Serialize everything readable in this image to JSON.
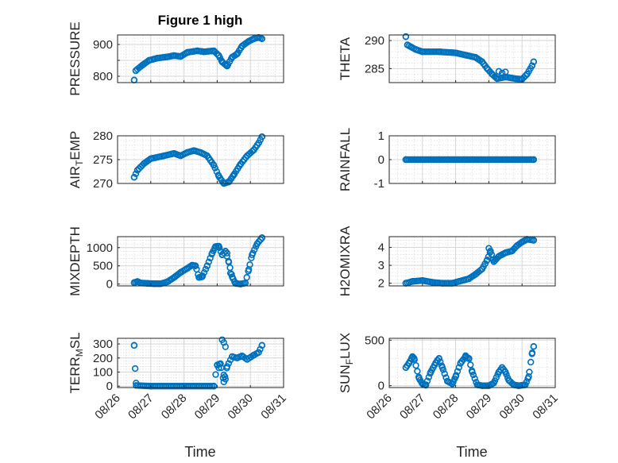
{
  "figure": {
    "title": "Figure 1 high",
    "marker_color": "#0072bd",
    "x_tick_labels": [
      "08/26",
      "08/27",
      "08/28",
      "08/29",
      "08/30",
      "08/31"
    ],
    "x_label": "Time"
  },
  "chart_data": [
    {
      "type": "scatter",
      "ylabel": "PRESSURE",
      "ylim": [
        780,
        930
      ],
      "yticks": [
        800,
        850,
        900
      ],
      "ytick_labels": [
        "800",
        "",
        "900"
      ],
      "x_day_range": [
        26,
        31
      ],
      "anchors": [
        [
          26.5,
          788
        ],
        [
          26.55,
          818
        ],
        [
          26.75,
          835
        ],
        [
          26.95,
          850
        ],
        [
          27.2,
          857
        ],
        [
          27.5,
          861
        ],
        [
          27.7,
          865
        ],
        [
          27.9,
          862
        ],
        [
          28.1,
          875
        ],
        [
          28.4,
          880
        ],
        [
          28.6,
          877
        ],
        [
          28.9,
          880
        ],
        [
          29.05,
          865
        ],
        [
          29.15,
          845
        ],
        [
          29.3,
          832
        ],
        [
          29.45,
          860
        ],
        [
          29.6,
          870
        ],
        [
          29.75,
          895
        ],
        [
          29.95,
          910
        ],
        [
          30.1,
          918
        ],
        [
          30.25,
          922
        ],
        [
          30.35,
          918
        ]
      ],
      "points": 80,
      "extras": [
        [
          29.25,
          838
        ],
        [
          29.3,
          833
        ]
      ]
    },
    {
      "type": "scatter",
      "ylabel": "THETA",
      "ylim": [
        282.5,
        291
      ],
      "yticks": [
        285,
        290
      ],
      "ytick_labels": [
        "285",
        "290"
      ],
      "x_day_range": [
        26,
        31
      ],
      "anchors": [
        [
          26.5,
          290.7
        ],
        [
          26.55,
          289.2
        ],
        [
          26.8,
          288.4
        ],
        [
          27.0,
          288.0
        ],
        [
          27.5,
          288.0
        ],
        [
          28.0,
          287.8
        ],
        [
          28.3,
          287.4
        ],
        [
          28.6,
          287.0
        ],
        [
          28.8,
          286.2
        ],
        [
          28.95,
          285.0
        ],
        [
          29.1,
          284.0
        ],
        [
          29.25,
          283.2
        ],
        [
          29.5,
          283.5
        ],
        [
          29.8,
          283.2
        ],
        [
          30.0,
          283.1
        ],
        [
          30.15,
          284.0
        ],
        [
          30.3,
          285.5
        ],
        [
          30.35,
          286.2
        ]
      ],
      "points": 80,
      "extras": [
        [
          29.3,
          284.5
        ],
        [
          29.4,
          284.2
        ],
        [
          29.5,
          284.4
        ]
      ]
    },
    {
      "type": "scatter",
      "ylabel": "AIR_TEMP",
      "ylim": [
        270,
        280
      ],
      "yticks": [
        270,
        275,
        280
      ],
      "ytick_labels": [
        "270",
        "275",
        "280"
      ],
      "x_day_range": [
        26,
        31
      ],
      "anchors": [
        [
          26.5,
          271.3
        ],
        [
          26.6,
          272.8
        ],
        [
          26.8,
          274.2
        ],
        [
          27.0,
          275.2
        ],
        [
          27.4,
          275.8
        ],
        [
          27.7,
          276.3
        ],
        [
          27.9,
          275.8
        ],
        [
          28.1,
          276.5
        ],
        [
          28.3,
          276.9
        ],
        [
          28.5,
          276.5
        ],
        [
          28.7,
          275.8
        ],
        [
          28.9,
          273.8
        ],
        [
          29.05,
          271.5
        ],
        [
          29.2,
          270.0
        ],
        [
          29.35,
          270.3
        ],
        [
          29.5,
          271.8
        ],
        [
          29.7,
          274.0
        ],
        [
          29.9,
          275.8
        ],
        [
          30.1,
          277.0
        ],
        [
          30.25,
          278.5
        ],
        [
          30.35,
          279.8
        ]
      ],
      "points": 80,
      "extras": []
    },
    {
      "type": "scatter",
      "ylabel": "RAINFALL",
      "ylim": [
        -1,
        1
      ],
      "yticks": [
        -1,
        0,
        1
      ],
      "ytick_labels": [
        "-1",
        "0",
        "1"
      ],
      "x_day_range": [
        26,
        31
      ],
      "anchors": [
        [
          26.5,
          0
        ],
        [
          30.35,
          0
        ]
      ],
      "points": 90,
      "extras": []
    },
    {
      "type": "scatter",
      "ylabel": "MIXDEPTH",
      "ylim": [
        -50,
        1300
      ],
      "yticks": [
        0,
        500,
        1000
      ],
      "ytick_labels": [
        "0",
        "500",
        "1000"
      ],
      "x_day_range": [
        26,
        31
      ],
      "anchors": [
        [
          26.5,
          40
        ],
        [
          26.6,
          70
        ],
        [
          26.7,
          30
        ],
        [
          26.9,
          20
        ],
        [
          27.1,
          10
        ],
        [
          27.3,
          10
        ],
        [
          27.5,
          60
        ],
        [
          27.7,
          180
        ],
        [
          27.9,
          320
        ],
        [
          28.1,
          430
        ],
        [
          28.25,
          520
        ],
        [
          28.35,
          500
        ],
        [
          28.45,
          180
        ],
        [
          28.55,
          200
        ],
        [
          28.7,
          500
        ],
        [
          28.85,
          850
        ],
        [
          28.95,
          1030
        ],
        [
          29.05,
          1040
        ],
        [
          29.15,
          800
        ],
        [
          29.25,
          900
        ],
        [
          29.35,
          600
        ],
        [
          29.45,
          200
        ],
        [
          29.55,
          20
        ],
        [
          29.7,
          0
        ],
        [
          29.85,
          30
        ],
        [
          29.95,
          400
        ],
        [
          30.05,
          800
        ],
        [
          30.2,
          1100
        ],
        [
          30.35,
          1270
        ]
      ],
      "points": 85,
      "extras": [
        [
          29.3,
          850
        ],
        [
          29.4,
          300
        ]
      ]
    },
    {
      "type": "scatter",
      "ylabel": "H2OMIXRA",
      "ylim": [
        1.85,
        4.6
      ],
      "yticks": [
        2,
        3,
        4
      ],
      "ytick_labels": [
        "2",
        "3",
        "4"
      ],
      "x_day_range": [
        26,
        31
      ],
      "anchors": [
        [
          26.5,
          2.0
        ],
        [
          26.7,
          2.1
        ],
        [
          27.0,
          2.15
        ],
        [
          27.3,
          2.05
        ],
        [
          27.6,
          2.0
        ],
        [
          27.9,
          2.0
        ],
        [
          28.1,
          2.1
        ],
        [
          28.4,
          2.25
        ],
        [
          28.6,
          2.5
        ],
        [
          28.8,
          2.8
        ],
        [
          28.95,
          3.3
        ],
        [
          29.05,
          3.8
        ],
        [
          29.15,
          3.2
        ],
        [
          29.3,
          3.5
        ],
        [
          29.5,
          3.7
        ],
        [
          29.7,
          3.8
        ],
        [
          29.85,
          4.1
        ],
        [
          30.0,
          4.3
        ],
        [
          30.15,
          4.45
        ],
        [
          30.35,
          4.4
        ]
      ],
      "points": 80,
      "extras": [
        [
          29.0,
          3.95
        ],
        [
          29.2,
          3.35
        ]
      ]
    },
    {
      "type": "scatter",
      "ylabel": "TERR_MSL",
      "ylim": [
        -10,
        340
      ],
      "yticks": [
        0,
        100,
        200,
        300
      ],
      "ytick_labels": [
        "0",
        "100",
        "200",
        "300"
      ],
      "x_day_range": [
        26,
        31
      ],
      "anchors": [
        [
          26.5,
          290
        ],
        [
          26.53,
          125
        ],
        [
          26.56,
          5
        ],
        [
          27.0,
          0
        ],
        [
          28.0,
          0
        ],
        [
          28.9,
          0
        ],
        [
          29.0,
          150
        ],
        [
          29.1,
          160
        ],
        [
          29.2,
          30
        ],
        [
          29.3,
          140
        ],
        [
          29.45,
          210
        ],
        [
          29.6,
          200
        ],
        [
          29.75,
          215
        ],
        [
          29.9,
          190
        ],
        [
          30.1,
          220
        ],
        [
          30.25,
          240
        ],
        [
          30.35,
          290
        ]
      ],
      "points": 70,
      "extras": [
        [
          29.15,
          330
        ],
        [
          29.2,
          310
        ],
        [
          29.25,
          280
        ],
        [
          29.2,
          80
        ],
        [
          29.25,
          50
        ],
        [
          29.05,
          130
        ]
      ]
    },
    {
      "type": "scatter",
      "ylabel": "SUN_FLUX",
      "ylim": [
        -20,
        520
      ],
      "yticks": [
        0,
        500
      ],
      "ytick_labels": [
        "0",
        "500"
      ],
      "x_day_range": [
        26,
        31
      ],
      "anchors": [
        [
          26.5,
          200
        ],
        [
          26.6,
          250
        ],
        [
          26.7,
          320
        ],
        [
          26.75,
          300
        ],
        [
          26.9,
          80
        ],
        [
          27.0,
          20
        ],
        [
          27.1,
          5
        ],
        [
          27.25,
          150
        ],
        [
          27.4,
          250
        ],
        [
          27.5,
          300
        ],
        [
          27.6,
          200
        ],
        [
          27.75,
          50
        ],
        [
          27.9,
          20
        ],
        [
          28.0,
          100
        ],
        [
          28.15,
          250
        ],
        [
          28.3,
          320
        ],
        [
          28.4,
          300
        ],
        [
          28.5,
          150
        ],
        [
          28.65,
          10
        ],
        [
          28.8,
          0
        ],
        [
          29.0,
          0
        ],
        [
          29.15,
          30
        ],
        [
          29.3,
          150
        ],
        [
          29.4,
          200
        ],
        [
          29.5,
          150
        ],
        [
          29.6,
          60
        ],
        [
          29.75,
          10
        ],
        [
          29.9,
          0
        ],
        [
          30.1,
          10
        ],
        [
          30.2,
          100
        ],
        [
          30.3,
          350
        ],
        [
          30.35,
          430
        ]
      ],
      "points": 90,
      "extras": [
        [
          28.3,
          330
        ],
        [
          27.45,
          280
        ]
      ]
    }
  ]
}
